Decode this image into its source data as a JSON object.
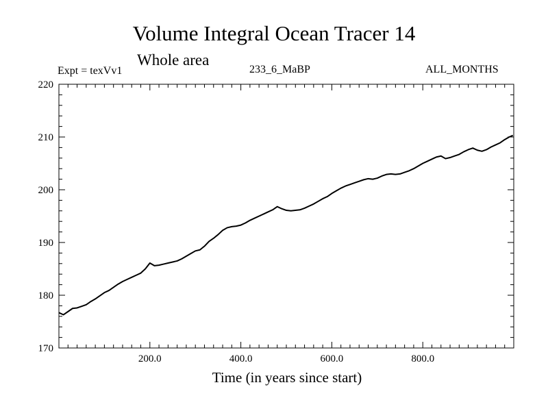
{
  "header": {
    "title": "Volume Integral Ocean Tracer 14",
    "subtitle": "Whole area",
    "experiment": "Expt = texVv1",
    "period": "233_6_MaBP",
    "months": "ALL_MONTHS"
  },
  "chart_data": {
    "type": "line",
    "title": "Volume Integral Ocean Tracer 14",
    "subtitle": "Whole area",
    "xlabel": "Time (in years since start)",
    "ylabel": "",
    "xlim": [
      0,
      1000
    ],
    "ylim": [
      170,
      220
    ],
    "x_ticks": [
      200,
      400,
      600,
      800
    ],
    "x_tick_labels": [
      "200.0",
      "400.0",
      "600.0",
      "800.0"
    ],
    "y_ticks": [
      170,
      180,
      190,
      200,
      210,
      220
    ],
    "y_tick_labels": [
      "170",
      "180",
      "190",
      "200",
      "210",
      "220"
    ],
    "grid": false,
    "series": [
      {
        "name": "Tracer 14",
        "color": "#000000",
        "x": [
          0,
          10,
          20,
          30,
          40,
          50,
          60,
          70,
          80,
          90,
          100,
          110,
          120,
          130,
          140,
          150,
          160,
          170,
          180,
          190,
          200,
          210,
          220,
          230,
          240,
          250,
          260,
          270,
          280,
          290,
          300,
          310,
          320,
          330,
          340,
          350,
          360,
          370,
          380,
          390,
          400,
          410,
          420,
          430,
          440,
          450,
          460,
          470,
          480,
          490,
          500,
          510,
          520,
          530,
          540,
          550,
          560,
          570,
          580,
          590,
          600,
          610,
          620,
          630,
          640,
          650,
          660,
          670,
          680,
          690,
          700,
          710,
          720,
          730,
          740,
          750,
          760,
          770,
          780,
          790,
          800,
          810,
          820,
          830,
          840,
          850,
          860,
          870,
          880,
          890,
          900,
          910,
          920,
          930,
          940,
          950,
          960,
          970,
          980,
          990,
          998
        ],
        "values": [
          176.7,
          176.3,
          176.9,
          177.5,
          177.6,
          177.9,
          178.2,
          178.8,
          179.3,
          179.9,
          180.5,
          180.9,
          181.5,
          182.1,
          182.6,
          183.0,
          183.4,
          183.8,
          184.2,
          185.0,
          186.1,
          185.6,
          185.7,
          185.9,
          186.1,
          186.3,
          186.5,
          186.9,
          187.4,
          187.9,
          188.4,
          188.6,
          189.3,
          190.2,
          190.8,
          191.5,
          192.3,
          192.8,
          193.0,
          193.1,
          193.3,
          193.7,
          194.2,
          194.6,
          195.0,
          195.4,
          195.8,
          196.2,
          196.8,
          196.4,
          196.1,
          196.0,
          196.1,
          196.2,
          196.5,
          196.9,
          197.3,
          197.8,
          198.3,
          198.7,
          199.3,
          199.8,
          200.3,
          200.7,
          201.0,
          201.3,
          201.6,
          201.9,
          202.1,
          202.0,
          202.2,
          202.6,
          202.9,
          203.0,
          202.9,
          203.0,
          203.3,
          203.6,
          204.0,
          204.5,
          205.0,
          205.4,
          205.8,
          206.2,
          206.4,
          205.9,
          206.1,
          206.4,
          206.7,
          207.2,
          207.6,
          207.9,
          207.5,
          207.3,
          207.6,
          208.1,
          208.5,
          208.9,
          209.5,
          210.0,
          210.3
        ]
      }
    ]
  }
}
